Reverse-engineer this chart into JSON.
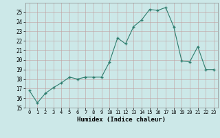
{
  "x": [
    0,
    1,
    2,
    3,
    4,
    5,
    6,
    7,
    8,
    9,
    10,
    11,
    12,
    13,
    14,
    15,
    16,
    17,
    18,
    19,
    20,
    21,
    22,
    23
  ],
  "y": [
    16.8,
    15.5,
    16.5,
    17.1,
    17.6,
    18.2,
    18.0,
    18.2,
    18.2,
    18.2,
    19.8,
    22.3,
    21.7,
    23.5,
    24.2,
    25.3,
    25.2,
    25.5,
    23.5,
    19.9,
    19.8,
    21.4,
    19.0,
    19.0
  ],
  "xlabel": "Humidex (Indice chaleur)",
  "ylim": [
    15,
    26
  ],
  "xlim": [
    -0.5,
    23.5
  ],
  "yticks": [
    15,
    16,
    17,
    18,
    19,
    20,
    21,
    22,
    23,
    24,
    25
  ],
  "xticks": [
    0,
    1,
    2,
    3,
    4,
    5,
    6,
    7,
    8,
    9,
    10,
    11,
    12,
    13,
    14,
    15,
    16,
    17,
    18,
    19,
    20,
    21,
    22,
    23
  ],
  "xtick_labels": [
    "0",
    "1",
    "2",
    "3",
    "4",
    "5",
    "6",
    "7",
    "8",
    "9",
    "10",
    "11",
    "12",
    "13",
    "14",
    "15",
    "16",
    "17",
    "18",
    "19",
    "20",
    "21",
    "22",
    "23"
  ],
  "line_color": "#2e7d6e",
  "marker": "+",
  "bg_color": "#cce8e8",
  "grid_color": "#c0a0a0",
  "spine_color": "#888888"
}
